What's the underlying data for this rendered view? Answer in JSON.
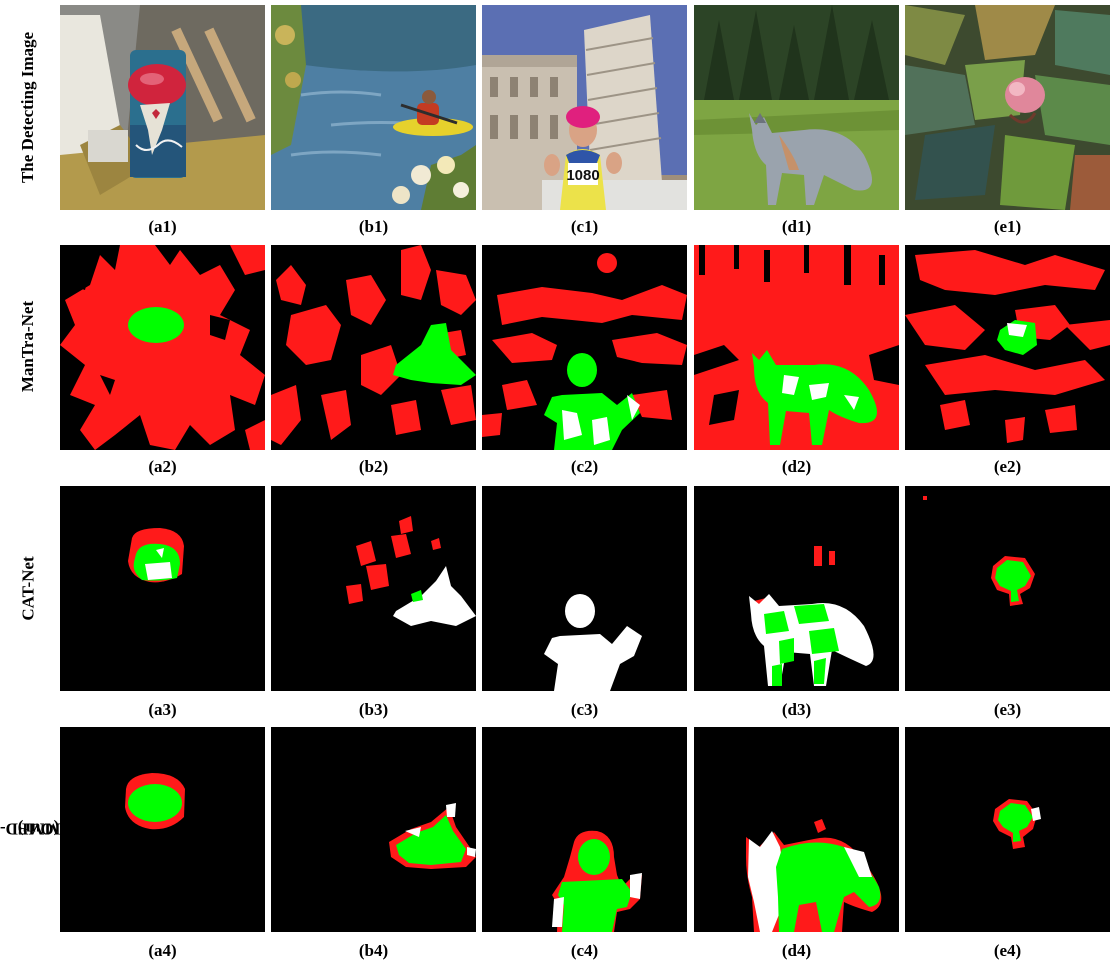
{
  "rows": [
    {
      "label": "The Detecting Image",
      "captions": [
        "(a1)",
        "(b1)",
        "(c1)",
        "(d1)",
        "(e1)"
      ]
    },
    {
      "label": "ManTra-Net",
      "captions": [
        "(a2)",
        "(b2)",
        "(c2)",
        "(d2)",
        "(e2)"
      ]
    },
    {
      "label": "CAT-Net",
      "captions": [
        "(a3)",
        "(b3)",
        "(c3)",
        "(d3)",
        "(e3)"
      ]
    },
    {
      "label_line1": "MMFD-Net",
      "label_line2": "(Our)",
      "captions": [
        "(a4)",
        "(b4)",
        "(c4)",
        "(d4)",
        "(e4)"
      ]
    }
  ],
  "photo_overlays": {
    "race_bib_number": "1080"
  },
  "legend_colors": {
    "true_positive": "#00ff00",
    "false_positive": "#ff0000",
    "false_negative": "#ffffff",
    "background": "#000000"
  }
}
